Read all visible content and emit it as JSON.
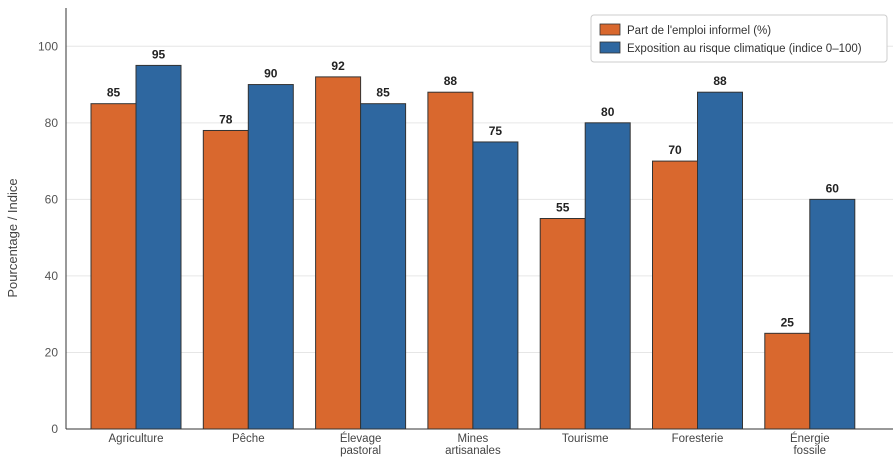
{
  "chart_data": {
    "type": "bar",
    "ylabel": "Pourcentage / Indice",
    "ylim": [
      0,
      110
    ],
    "yticks": [
      0,
      20,
      40,
      60,
      80,
      100
    ],
    "grid": true,
    "legend_position": "top-right",
    "categories": [
      [
        "Agriculture"
      ],
      [
        "Pêche"
      ],
      [
        "Élevage",
        "pastoral"
      ],
      [
        "Mines",
        "artisanales"
      ],
      [
        "Tourisme"
      ],
      [
        "Foresterie"
      ],
      [
        "Énergie",
        "fossile"
      ]
    ],
    "series": [
      {
        "name": "Part de l'emploi informel (%)",
        "color": "#d9682e",
        "values": [
          85,
          78,
          92,
          88,
          55,
          70,
          25
        ]
      },
      {
        "name": "Exposition au risque climatique (indice 0–100)",
        "color": "#2e67a0",
        "values": [
          95,
          90,
          85,
          75,
          80,
          88,
          60
        ]
      }
    ]
  }
}
